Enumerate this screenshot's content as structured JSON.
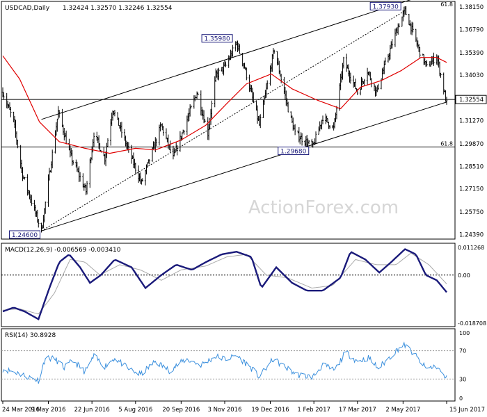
{
  "chart_data": {
    "type": "ohlc",
    "price": {
      "title": "USDCAD,Daily",
      "ohlc_readout": "1.32424 1.32570 1.32246 1.32554",
      "current_price": "1.32554",
      "ylim": [
        1.2415,
        1.3845
      ],
      "yticks": [
        "1.38150",
        "1.36790",
        "1.35390",
        "1.34030",
        "1.32554",
        "1.31270",
        "1.29870",
        "1.28510",
        "1.27150",
        "1.25750",
        "1.24390"
      ],
      "yticks_values": [
        1.3815,
        1.3679,
        1.3539,
        1.3403,
        1.32554,
        1.3127,
        1.2987,
        1.2851,
        1.2715,
        1.2575,
        1.2439
      ],
      "watermark": "ActionForex.com",
      "annotations": [
        {
          "label": "1.24600",
          "value": 1.246,
          "date": "2016-05-02"
        },
        {
          "label": "1.35980",
          "value": 1.3598,
          "date": "2016-11-15"
        },
        {
          "label": "1.29680",
          "value": 1.2968,
          "date": "2017-01-31"
        },
        {
          "label": "1.37930",
          "value": 1.3793,
          "date": "2017-05-04"
        }
      ],
      "fib_levels": [
        {
          "label": "61.8",
          "value": 1.2968
        },
        {
          "label": "61.8",
          "value": 1.3848
        }
      ],
      "ma_color": "#e00000",
      "bar_color": "#000000",
      "channel_upper": [
        {
          "date": "2016-05-02",
          "value": 1.3135
        },
        {
          "date": "2017-06-15",
          "value": 1.393
        }
      ],
      "channel_lower": [
        {
          "date": "2016-05-02",
          "value": 1.246
        },
        {
          "date": "2017-06-15",
          "value": 1.324
        }
      ],
      "trend_dotted": [
        {
          "date": "2016-05-02",
          "value": 1.246
        },
        {
          "date": "2017-05-04",
          "value": 1.3793
        }
      ],
      "pivots": [
        {
          "date": "2016-03-24",
          "value": 1.33
        },
        {
          "date": "2016-04-04",
          "value": 1.312
        },
        {
          "date": "2016-04-13",
          "value": 1.28
        },
        {
          "date": "2016-05-02",
          "value": 1.246
        },
        {
          "date": "2016-05-19",
          "value": 1.318
        },
        {
          "date": "2016-05-31",
          "value": 1.292
        },
        {
          "date": "2016-06-16",
          "value": 1.27
        },
        {
          "date": "2016-06-24",
          "value": 1.305
        },
        {
          "date": "2016-07-05",
          "value": 1.29
        },
        {
          "date": "2016-07-13",
          "value": 1.32
        },
        {
          "date": "2016-08-01",
          "value": 1.29
        },
        {
          "date": "2016-08-11",
          "value": 1.275
        },
        {
          "date": "2016-08-31",
          "value": 1.31
        },
        {
          "date": "2016-09-12",
          "value": 1.29
        },
        {
          "date": "2016-10-06",
          "value": 1.33
        },
        {
          "date": "2016-10-17",
          "value": 1.305
        },
        {
          "date": "2016-10-25",
          "value": 1.34
        },
        {
          "date": "2016-11-04",
          "value": 1.346
        },
        {
          "date": "2016-11-15",
          "value": 1.3598
        },
        {
          "date": "2016-11-23",
          "value": 1.345
        },
        {
          "date": "2016-12-08",
          "value": 1.31
        },
        {
          "date": "2016-12-23",
          "value": 1.356
        },
        {
          "date": "2017-01-06",
          "value": 1.32
        },
        {
          "date": "2017-01-13",
          "value": 1.305
        },
        {
          "date": "2017-01-31",
          "value": 1.2968
        },
        {
          "date": "2017-02-10",
          "value": 1.315
        },
        {
          "date": "2017-02-21",
          "value": 1.308
        },
        {
          "date": "2017-03-03",
          "value": 1.349
        },
        {
          "date": "2017-03-17",
          "value": 1.33
        },
        {
          "date": "2017-03-27",
          "value": 1.343
        },
        {
          "date": "2017-04-05",
          "value": 1.33
        },
        {
          "date": "2017-04-13",
          "value": 1.345
        },
        {
          "date": "2017-04-27",
          "value": 1.37
        },
        {
          "date": "2017-05-04",
          "value": 1.3793
        },
        {
          "date": "2017-05-18",
          "value": 1.356
        },
        {
          "date": "2017-05-26",
          "value": 1.345
        },
        {
          "date": "2017-06-05",
          "value": 1.352
        },
        {
          "date": "2017-06-15",
          "value": 1.323
        }
      ],
      "ma_points": [
        {
          "date": "2016-03-24",
          "value": 1.352
        },
        {
          "date": "2016-04-10",
          "value": 1.338
        },
        {
          "date": "2016-04-30",
          "value": 1.312
        },
        {
          "date": "2016-05-20",
          "value": 1.3
        },
        {
          "date": "2016-06-15",
          "value": 1.296
        },
        {
          "date": "2016-07-10",
          "value": 1.293
        },
        {
          "date": "2016-08-05",
          "value": 1.296
        },
        {
          "date": "2016-08-25",
          "value": 1.295
        },
        {
          "date": "2016-09-20",
          "value": 1.301
        },
        {
          "date": "2016-10-15",
          "value": 1.31
        },
        {
          "date": "2016-11-05",
          "value": 1.323
        },
        {
          "date": "2016-11-25",
          "value": 1.335
        },
        {
          "date": "2016-12-20",
          "value": 1.341
        },
        {
          "date": "2017-01-10",
          "value": 1.332
        },
        {
          "date": "2017-02-05",
          "value": 1.325
        },
        {
          "date": "2017-02-28",
          "value": 1.32
        },
        {
          "date": "2017-03-20",
          "value": 1.333
        },
        {
          "date": "2017-04-10",
          "value": 1.337
        },
        {
          "date": "2017-04-30",
          "value": 1.343
        },
        {
          "date": "2017-05-20",
          "value": 1.351
        },
        {
          "date": "2017-06-05",
          "value": 1.351
        },
        {
          "date": "2017-06-15",
          "value": 1.348
        }
      ]
    },
    "macd": {
      "title": "MACD(12,26,9) -0.006569 -0.003410",
      "ylim": [
        -0.0196,
        0.012
      ],
      "yticks": [
        "0.011268",
        "0.00",
        "-0.018708"
      ],
      "yticks_values": [
        0.011268,
        0.0,
        -0.018708
      ],
      "zero_line": 0.0,
      "macd_color": "#1a1a7a",
      "signal_color": "#aaaaaa",
      "macd_points": [
        {
          "date": "2016-03-24",
          "value": -0.014
        },
        {
          "date": "2016-04-04",
          "value": -0.0125
        },
        {
          "date": "2016-04-15",
          "value": -0.014
        },
        {
          "date": "2016-04-29",
          "value": -0.017
        },
        {
          "date": "2016-05-10",
          "value": -0.005
        },
        {
          "date": "2016-05-20",
          "value": 0.005
        },
        {
          "date": "2016-05-30",
          "value": 0.008
        },
        {
          "date": "2016-06-10",
          "value": 0.003
        },
        {
          "date": "2016-06-20",
          "value": -0.003
        },
        {
          "date": "2016-07-01",
          "value": 0.0
        },
        {
          "date": "2016-07-15",
          "value": 0.006
        },
        {
          "date": "2016-08-01",
          "value": 0.003
        },
        {
          "date": "2016-08-15",
          "value": -0.005
        },
        {
          "date": "2016-08-31",
          "value": 0.0
        },
        {
          "date": "2016-09-15",
          "value": 0.004
        },
        {
          "date": "2016-10-01",
          "value": 0.002
        },
        {
          "date": "2016-10-15",
          "value": 0.005
        },
        {
          "date": "2016-10-31",
          "value": 0.008
        },
        {
          "date": "2016-11-15",
          "value": 0.009
        },
        {
          "date": "2016-11-30",
          "value": 0.007
        },
        {
          "date": "2016-12-10",
          "value": -0.005
        },
        {
          "date": "2016-12-25",
          "value": 0.003
        },
        {
          "date": "2017-01-10",
          "value": -0.003
        },
        {
          "date": "2017-01-25",
          "value": -0.006
        },
        {
          "date": "2017-02-10",
          "value": -0.006
        },
        {
          "date": "2017-02-28",
          "value": -0.001
        },
        {
          "date": "2017-03-10",
          "value": 0.009
        },
        {
          "date": "2017-03-25",
          "value": 0.006
        },
        {
          "date": "2017-04-08",
          "value": 0.001
        },
        {
          "date": "2017-04-20",
          "value": 0.005
        },
        {
          "date": "2017-05-04",
          "value": 0.01
        },
        {
          "date": "2017-05-15",
          "value": 0.008
        },
        {
          "date": "2017-05-25",
          "value": 0.0
        },
        {
          "date": "2017-06-05",
          "value": -0.002
        },
        {
          "date": "2017-06-15",
          "value": -0.0066
        }
      ],
      "signal_points": [
        {
          "date": "2016-03-24",
          "value": -0.0135
        },
        {
          "date": "2016-04-10",
          "value": -0.013
        },
        {
          "date": "2016-04-29",
          "value": -0.015
        },
        {
          "date": "2016-05-15",
          "value": -0.007
        },
        {
          "date": "2016-05-31",
          "value": 0.006
        },
        {
          "date": "2016-06-15",
          "value": 0.005
        },
        {
          "date": "2016-06-30",
          "value": 0.0
        },
        {
          "date": "2016-07-20",
          "value": 0.004
        },
        {
          "date": "2016-08-10",
          "value": 0.002
        },
        {
          "date": "2016-08-31",
          "value": -0.002
        },
        {
          "date": "2016-09-20",
          "value": 0.002
        },
        {
          "date": "2016-10-15",
          "value": 0.0035
        },
        {
          "date": "2016-11-05",
          "value": 0.007
        },
        {
          "date": "2016-11-25",
          "value": 0.008
        },
        {
          "date": "2016-12-15",
          "value": 0.0
        },
        {
          "date": "2017-01-05",
          "value": -0.001
        },
        {
          "date": "2017-01-30",
          "value": -0.005
        },
        {
          "date": "2017-02-20",
          "value": -0.004
        },
        {
          "date": "2017-03-15",
          "value": 0.006
        },
        {
          "date": "2017-04-05",
          "value": 0.004
        },
        {
          "date": "2017-04-25",
          "value": 0.004
        },
        {
          "date": "2017-05-10",
          "value": 0.0085
        },
        {
          "date": "2017-05-28",
          "value": 0.004
        },
        {
          "date": "2017-06-15",
          "value": -0.0034
        }
      ]
    },
    "rsi": {
      "title": "RSI(14) 30.8928",
      "ylim": [
        0,
        100
      ],
      "yticks": [
        "100",
        "70",
        "30",
        "0"
      ],
      "yticks_values": [
        100,
        70,
        30,
        0
      ],
      "levels": [
        70,
        30
      ],
      "line_color": "#3a8fdd",
      "points": [
        {
          "date": "2016-03-24",
          "value": 44
        },
        {
          "date": "2016-04-05",
          "value": 40
        },
        {
          "date": "2016-04-15",
          "value": 35
        },
        {
          "date": "2016-04-29",
          "value": 28
        },
        {
          "date": "2016-05-06",
          "value": 60
        },
        {
          "date": "2016-05-16",
          "value": 58
        },
        {
          "date": "2016-05-25",
          "value": 46
        },
        {
          "date": "2016-06-03",
          "value": 56
        },
        {
          "date": "2016-06-15",
          "value": 40
        },
        {
          "date": "2016-06-24",
          "value": 62
        },
        {
          "date": "2016-07-05",
          "value": 48
        },
        {
          "date": "2016-07-15",
          "value": 60
        },
        {
          "date": "2016-07-28",
          "value": 45
        },
        {
          "date": "2016-08-10",
          "value": 36
        },
        {
          "date": "2016-08-25",
          "value": 55
        },
        {
          "date": "2016-09-08",
          "value": 42
        },
        {
          "date": "2016-09-25",
          "value": 58
        },
        {
          "date": "2016-10-10",
          "value": 50
        },
        {
          "date": "2016-10-25",
          "value": 62
        },
        {
          "date": "2016-11-05",
          "value": 58
        },
        {
          "date": "2016-11-15",
          "value": 63
        },
        {
          "date": "2016-11-28",
          "value": 48
        },
        {
          "date": "2016-12-08",
          "value": 33
        },
        {
          "date": "2016-12-22",
          "value": 58
        },
        {
          "date": "2017-01-05",
          "value": 45
        },
        {
          "date": "2017-01-15",
          "value": 36
        },
        {
          "date": "2017-01-31",
          "value": 33
        },
        {
          "date": "2017-02-10",
          "value": 50
        },
        {
          "date": "2017-02-22",
          "value": 42
        },
        {
          "date": "2017-03-05",
          "value": 68
        },
        {
          "date": "2017-03-17",
          "value": 55
        },
        {
          "date": "2017-03-28",
          "value": 60
        },
        {
          "date": "2017-04-07",
          "value": 45
        },
        {
          "date": "2017-04-18",
          "value": 60
        },
        {
          "date": "2017-04-28",
          "value": 74
        },
        {
          "date": "2017-05-04",
          "value": 78
        },
        {
          "date": "2017-05-15",
          "value": 62
        },
        {
          "date": "2017-05-25",
          "value": 45
        },
        {
          "date": "2017-06-05",
          "value": 48
        },
        {
          "date": "2017-06-12",
          "value": 34
        },
        {
          "date": "2017-06-15",
          "value": 31
        }
      ]
    },
    "x_axis": {
      "start_date": "2016-03-24",
      "end_date": "2017-06-15",
      "ticks": [
        {
          "date": "2016-03-24",
          "label": "24 Mar 2016"
        },
        {
          "date": "2016-05-09",
          "label": "9 May 2016"
        },
        {
          "date": "2016-06-22",
          "label": "22 Jun 2016"
        },
        {
          "date": "2016-08-05",
          "label": "5 Aug 2016"
        },
        {
          "date": "2016-09-20",
          "label": "20 Sep 2016"
        },
        {
          "date": "2016-11-03",
          "label": "3 Nov 2016"
        },
        {
          "date": "2016-12-19",
          "label": "19 Dec 2016"
        },
        {
          "date": "2017-02-01",
          "label": "1 Feb 2017"
        },
        {
          "date": "2017-03-17",
          "label": "17 Mar 2017"
        },
        {
          "date": "2017-05-02",
          "label": "2 May 2017"
        },
        {
          "date": "2017-06-15",
          "label": "15 Jun 2017"
        }
      ]
    }
  }
}
